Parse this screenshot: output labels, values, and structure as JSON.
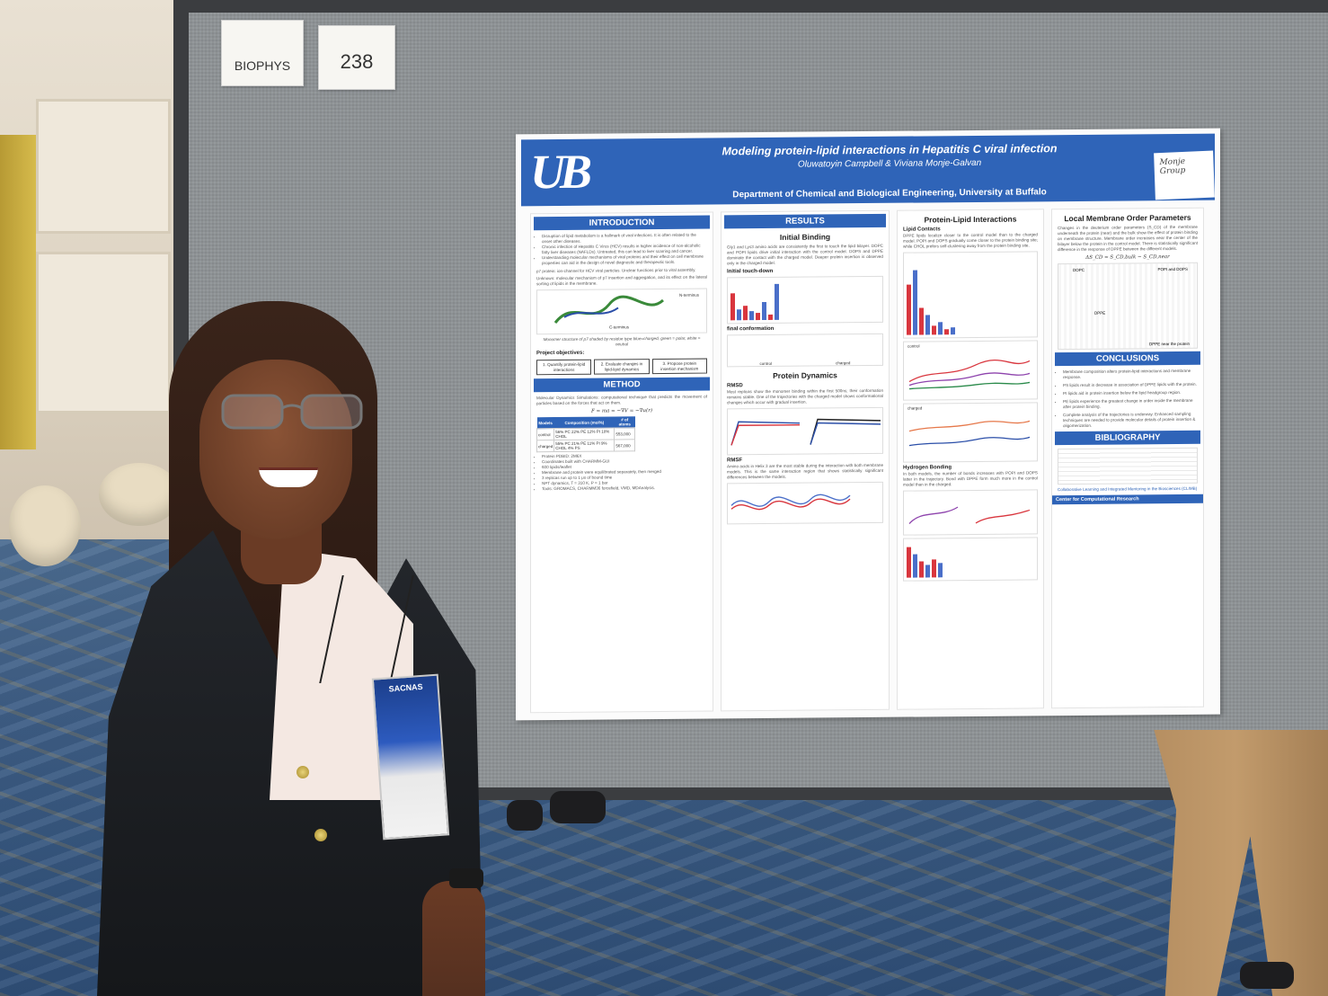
{
  "tags": {
    "biophys": "BIOPHYS",
    "board_number": "238"
  },
  "poster": {
    "title": "Modeling protein-lipid interactions in Hepatitis C viral infection",
    "authors": "Oluwatoyin Campbell & Viviana Monje-Galvan",
    "department": "Department of Chemical and Biological Engineering, University at Buffalo",
    "logo": "UB",
    "group_sign": "Monje Group",
    "sections": {
      "introduction": {
        "heading": "INTRODUCTION",
        "bullets": [
          "Disruption of lipid metabolism is a hallmark of viral infections. It is often related to the onset other diseases.",
          "Chronic infection of Hepatitis C Virus (HCV) results in higher incidence of non-alcoholic fatty liver diseases (NAFLDs). Untreated, this can lead to liver scarring and cancer.",
          "Understanding molecular mechanisms of viral proteins and their effect on cell membrane properties can aid in the design of novel diagnostic and therapeutic tools."
        ],
        "p7": "p7 protein: ion-channel for HCV viral particles. Unclear functions prior to viral assembly.",
        "unknown": "Unknown: molecular mechanism of p7 insertion and aggregation, and its effect on the lateral sorting of lipids in the membrane.",
        "n_terminus": "N-terminus",
        "c_terminus": "C-terminus",
        "caption": "Monomer structure of p7 shaded by residue type blue=charged, green = polar, white = neutral",
        "objectives_label": "Project objectives:",
        "objectives": [
          "1. Quantify protein-lipid interactions",
          "2. Evaluate changes in lipid-lipid dynamics",
          "3. Propose protein insertion mechanism"
        ]
      },
      "method": {
        "heading": "METHOD",
        "md": "Molecular Dynamics Simulations: computational technique that predicts the movement of particles based on the forces that act on them.",
        "equation": "F = ma = −∇V = −∇u(r)",
        "table_headers": [
          "Models",
          "Composition (mol%)",
          "# of atoms"
        ],
        "table_rows": [
          [
            "control",
            "56% PC 22% PE 12% PI 10% CHOL",
            "553,000"
          ],
          [
            "charged",
            "55% PC 21% PE 11% PI 9% CHOL 4% PS",
            "567,000"
          ]
        ],
        "details": [
          "Protein PDBID: 2M6X",
          "Coordinates built with CHARMM-GUI",
          "600 lipids/leaflet",
          "Membrane and protein were equilibrated separately, then merged",
          "3 replicas run up to 1 μs of bound time",
          "NPT dynamics, T = 310 K, P = 1 bar",
          "Tools: GROMACS, CHARMM36 forcefield, VMD, MDAnalysis."
        ]
      },
      "results": {
        "heading": "RESULTS",
        "initial_binding": "Initial Binding",
        "initial_text": "Gly1 and Lys3 amino acids are consistently the first to touch the lipid bilayer. DOPC and POPI lipids drive initial interaction with the control model. DOPS and DPPE dominate the contact with the charged model. Deeper protein insertion is observed only in the charged model.",
        "initial_touchdown": "Initial touch-down",
        "final_conformation": "final conformation",
        "control": "control",
        "charged": "charged",
        "protein_dynamics": "Protein Dynamics",
        "rmsd": "RMSD",
        "rmsd_text": "Most replicas show the monomer binding within the first 500ns; their conformation remains stable. One of the trajectories with the charged model shows conformational changes which occur with gradual insertion.",
        "rmsf": "RMSF",
        "rmsf_text": "Amino acids in Helix 3 are the most stable during the interaction with both membrane models. This is the same interaction region that shows statistically significant differences between the models."
      },
      "protein_lipid": {
        "heading": "Protein-Lipid Interactions",
        "lipid_contacts": "Lipid Contacts",
        "lipid_text": "DPPE lipids localize closer to the control model than to the charged model. POPI and DOPS gradually come closer to the protein binding site; while CHOL prefers self-clustering away from the protein binding site.",
        "hydrogen_bonding": "Hydrogen Bonding",
        "hbond_text": "In both models, the number of bonds increases with POPI and DOPS latter in the trajectory. Bond with DPPE form much more in the control model than in the charged.",
        "control": "control",
        "charged": "charged"
      },
      "order_params": {
        "heading": "Local Membrane Order Parameters",
        "text": "Changes in the deuterium order parameters (S_CD) of the membrane underneath the protein (near) and the bulk show the effect of protein binding on membrane structure. Membrane order increases near the center of the bilayer below the protein in the control model. There is statistically significant difference in the response of DPPE between the different models.",
        "formula": "ΔS_CD = S_CD,bulk − S_CD,near",
        "labels": [
          "DOPC",
          "POPI and DOPS",
          "DPPE"
        ],
        "dppe_near": "DPPE near the protein"
      },
      "conclusions": {
        "heading": "CONCLUSIONS",
        "bullets": [
          "Membrane composition alters protein-lipid interactions and membrane response.",
          "PS lipids result in decrease in association of DPPE lipids with the protein.",
          "PI lipids aid in protein insertion below the lipid headgroup region.",
          "PE lipids experience the greatest change in order inside the membrane after protein binding.",
          "Complete analysis of the trajectories is underway. Enhanced sampling techniques are needed to provide molecular details of protein insertion & oligomerization."
        ]
      },
      "bibliography": {
        "heading": "BIBLIOGRAPHY",
        "footer_center": "Center for Computational Research",
        "footer_climb": "Collaborative Learning and Integrated Mentoring in the Biosciences (CLIMB)"
      }
    }
  },
  "badge": {
    "label": "SACNAS"
  }
}
